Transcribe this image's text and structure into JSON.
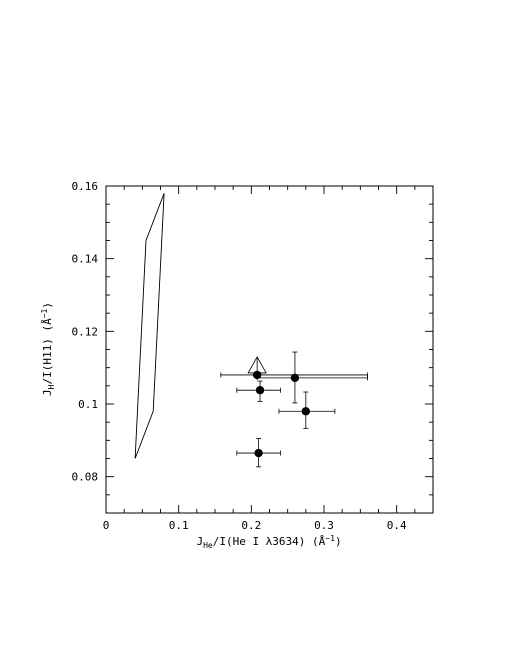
{
  "chart_data": {
    "type": "scatter",
    "xlabel": {
      "main": "J",
      "sub": "He",
      "rest": "/I(He I λ3634) (Å",
      "sup": "−1",
      "close": ")"
    },
    "ylabel": {
      "main": "J",
      "sub": "H",
      "rest": "/I(H11) (Å",
      "sup": "−1",
      "close": ")"
    },
    "xlim": [
      0,
      0.45
    ],
    "ylim": [
      0.07,
      0.16
    ],
    "xticks": [
      {
        "v": 0,
        "label": "0"
      },
      {
        "v": 0.1,
        "label": "0.1"
      },
      {
        "v": 0.2,
        "label": "0.2"
      },
      {
        "v": 0.3,
        "label": "0.3"
      },
      {
        "v": 0.4,
        "label": "0.4"
      }
    ],
    "yticks": [
      {
        "v": 0.08,
        "label": "0.08"
      },
      {
        "v": 0.1,
        "label": "0.1"
      },
      {
        "v": 0.12,
        "label": "0.12"
      },
      {
        "v": 0.14,
        "label": "0.14"
      },
      {
        "v": 0.16,
        "label": "0.16"
      }
    ],
    "grid": false,
    "points": [
      {
        "x": 0.208,
        "y": 0.108,
        "xerr": [
          0.158,
          0.36
        ],
        "yerr": null,
        "upper_limit_arrow": true
      },
      {
        "x": 0.26,
        "y": 0.1072,
        "xerr": [
          0.208,
          0.36
        ],
        "yerr": [
          0.1003,
          0.1143
        ]
      },
      {
        "x": 0.212,
        "y": 0.1038,
        "xerr": [
          0.18,
          0.24
        ],
        "yerr": [
          0.1007,
          0.1063
        ]
      },
      {
        "x": 0.275,
        "y": 0.098,
        "xerr": [
          0.238,
          0.315
        ],
        "yerr": [
          0.0933,
          0.1033
        ]
      },
      {
        "x": 0.21,
        "y": 0.0865,
        "xerr": [
          0.18,
          0.24
        ],
        "yerr": [
          0.0827,
          0.0905
        ]
      }
    ],
    "region_polygon": [
      [
        0.04,
        0.085
      ],
      [
        0.055,
        0.145
      ],
      [
        0.08,
        0.158
      ],
      [
        0.065,
        0.098
      ],
      [
        0.04,
        0.085
      ]
    ]
  }
}
